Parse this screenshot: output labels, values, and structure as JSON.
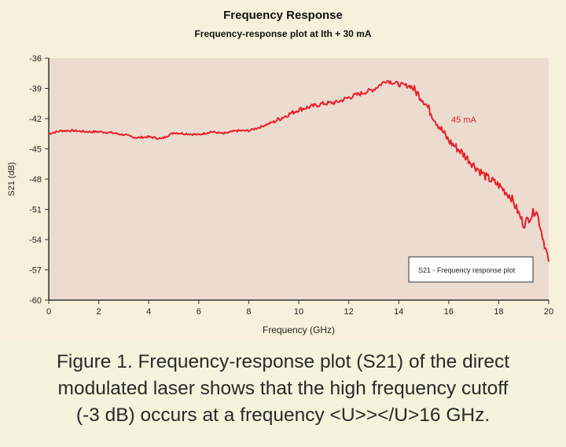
{
  "chart_data": {
    "type": "line",
    "title": "Frequency Response",
    "subtitle": "Frequency-response plot at Ith + 30 mA",
    "xlabel": "Frequency (GHz)",
    "ylabel": "S21 (dB)",
    "xlim": [
      0,
      20
    ],
    "ylim": [
      -60,
      -36
    ],
    "x_ticks": [
      "0",
      "2",
      "4",
      "6",
      "8",
      "10",
      "12",
      "14",
      "16",
      "18",
      "20"
    ],
    "y_ticks": [
      "-36",
      "-39",
      "-42",
      "-45",
      "-48",
      "-51",
      "-54",
      "-57",
      "-60"
    ],
    "grid": false,
    "legend": {
      "label": "S21 - Frequency response plot",
      "placement": "bottom-right"
    },
    "annotation": "45 mA",
    "colors": {
      "line": "#e8202a",
      "plot_bg": "#ecdcd0",
      "panel_bg": "#f7f0da"
    },
    "series": [
      {
        "x": [
          0,
          0.5,
          1,
          1.5,
          2,
          2.5,
          3,
          3.5,
          4,
          4.5,
          5,
          5.5,
          6,
          6.5,
          7,
          7.5,
          8,
          8.5,
          9,
          9.5,
          10,
          10.5,
          11,
          11.5,
          12,
          12.5,
          13,
          13.5,
          14,
          14.5,
          15,
          15.5,
          16,
          16.5,
          17,
          17.5,
          18,
          18.5,
          19,
          19.5,
          20
        ],
        "y": [
          -43.5,
          -43.2,
          -43.2,
          -43.3,
          -43.3,
          -43.4,
          -43.6,
          -43.9,
          -43.8,
          -44.0,
          -43.4,
          -43.5,
          -43.6,
          -43.3,
          -43.5,
          -43.2,
          -43.2,
          -42.8,
          -42.3,
          -41.7,
          -41.1,
          -40.8,
          -40.5,
          -40.4,
          -39.9,
          -39.5,
          -39.1,
          -38.2,
          -38.6,
          -38.8,
          -40.2,
          -42.3,
          -44.2,
          -45.3,
          -46.6,
          -47.8,
          -48.6,
          -49.8,
          -52.5,
          -51.0,
          -56.2
        ]
      }
    ]
  },
  "caption": {
    "line1": "Figure 1. Frequency-response plot (S21) of the direct",
    "line2": "modulated laser shows that the high frequency cutoff",
    "line3": "(-3 dB) occurs at a frequency <U>></U>16 GHz."
  }
}
